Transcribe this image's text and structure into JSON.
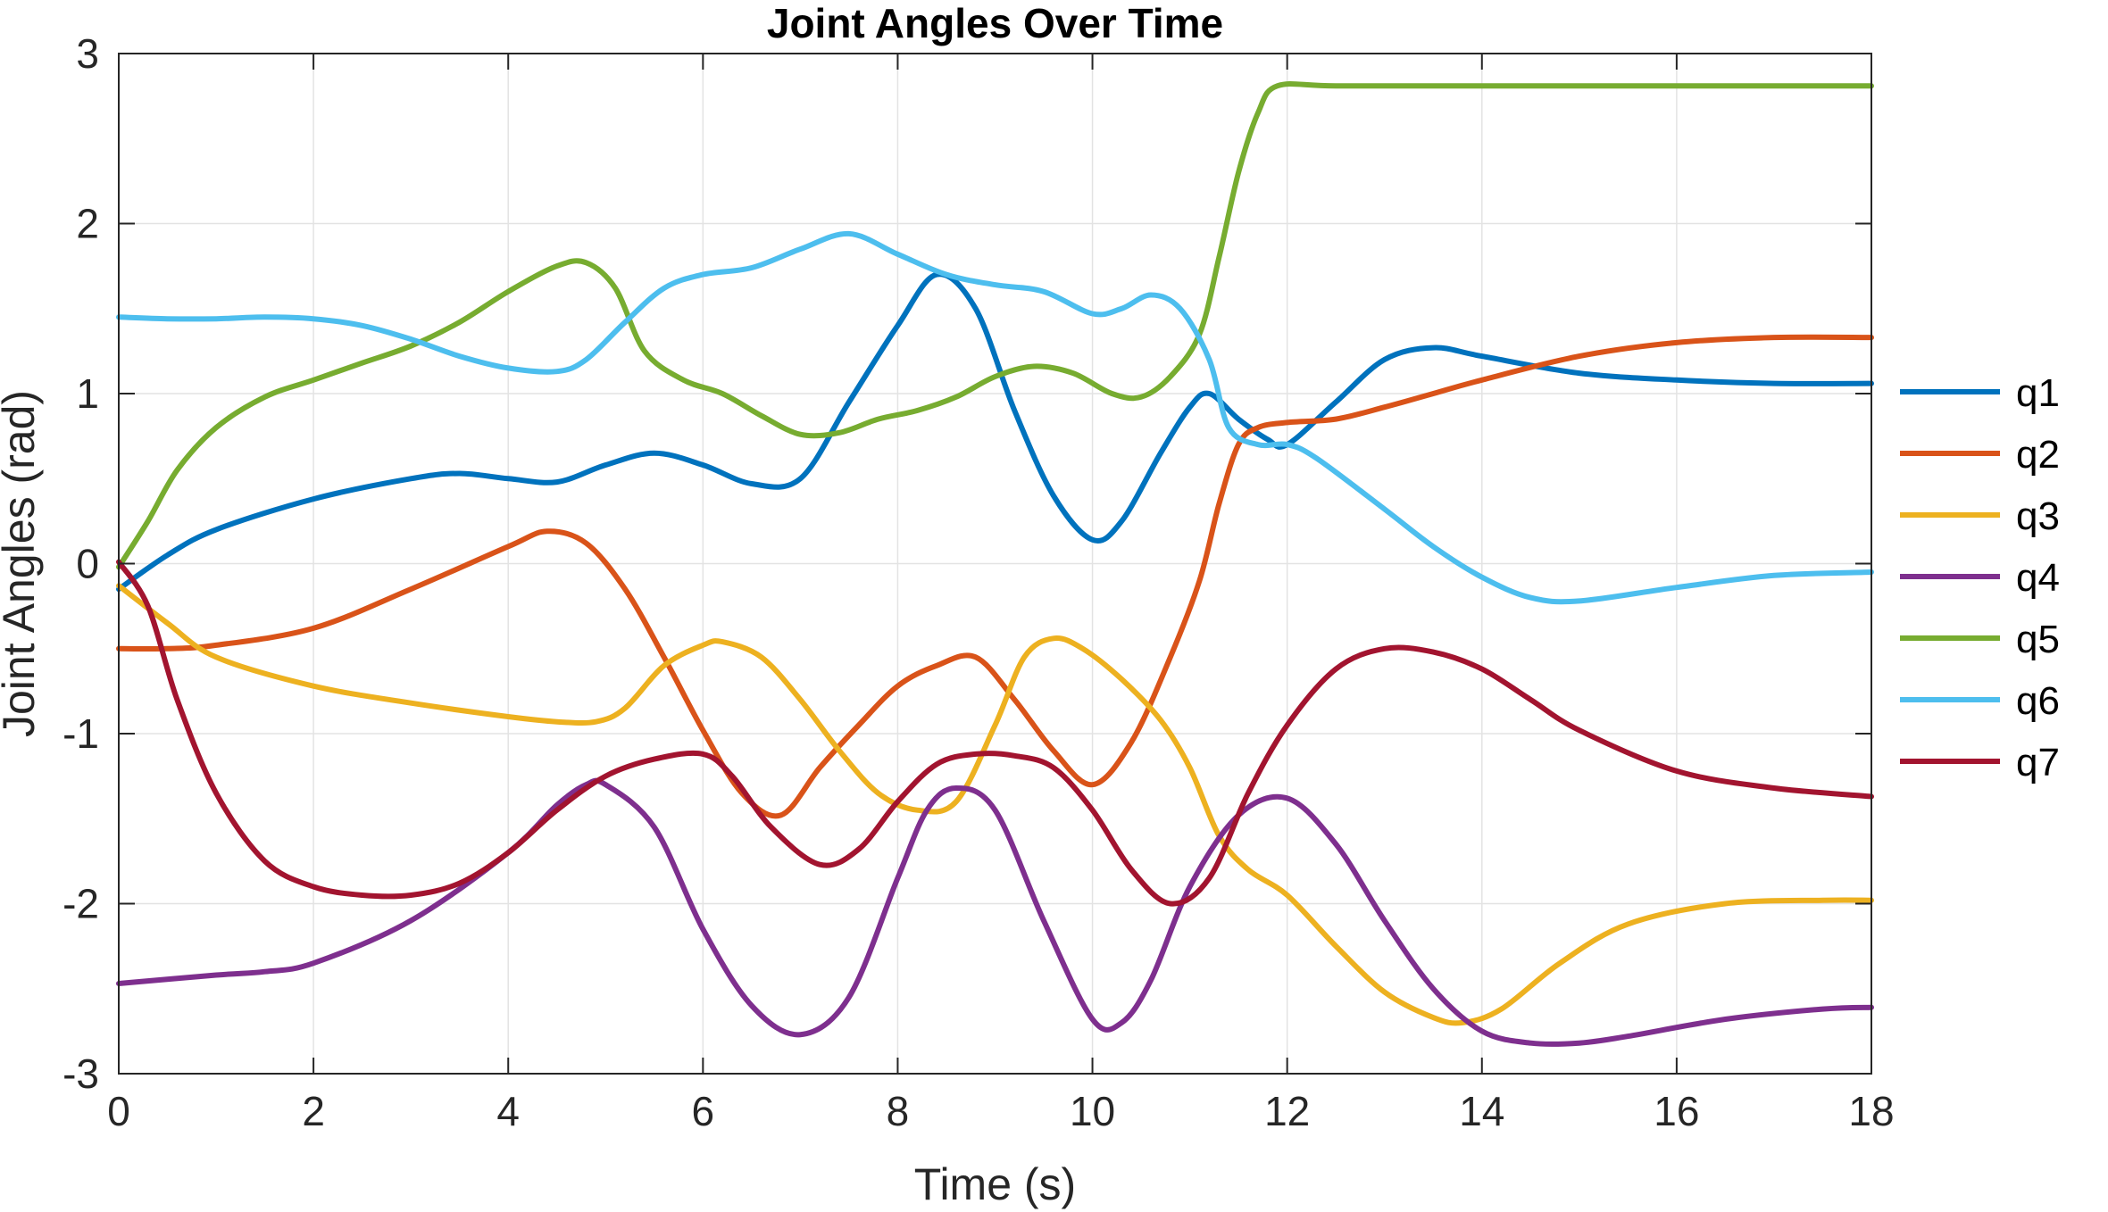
{
  "chart_data": {
    "type": "line",
    "title": "Joint Angles Over Time",
    "xlabel": "Time (s)",
    "ylabel": "Joint Angles (rad)",
    "xlim": [
      0,
      18
    ],
    "ylim": [
      -3,
      3
    ],
    "xticks": [
      0,
      2,
      4,
      6,
      8,
      10,
      12,
      14,
      16,
      18
    ],
    "yticks": [
      -3,
      -2,
      -1,
      0,
      1,
      2,
      3
    ],
    "grid": true,
    "legend_position": "right",
    "series": [
      {
        "name": "q1",
        "color": "#0072BD",
        "x": [
          0,
          0.5,
          1,
          2,
          3,
          3.5,
          4,
          4.5,
          5,
          5.5,
          6,
          6.5,
          7,
          7.5,
          8,
          8.4,
          8.8,
          9.2,
          9.6,
          10,
          10.3,
          10.7,
          11,
          11.2,
          11.5,
          11.8,
          12,
          12.5,
          13,
          13.5,
          14,
          15,
          16,
          17,
          18
        ],
        "y": [
          -0.15,
          0.05,
          0.2,
          0.38,
          0.5,
          0.53,
          0.5,
          0.48,
          0.58,
          0.65,
          0.58,
          0.47,
          0.5,
          0.95,
          1.4,
          1.7,
          1.5,
          0.9,
          0.4,
          0.14,
          0.25,
          0.65,
          0.92,
          1.0,
          0.85,
          0.73,
          0.7,
          0.95,
          1.2,
          1.27,
          1.22,
          1.12,
          1.08,
          1.06,
          1.06
        ]
      },
      {
        "name": "q2",
        "color": "#D95319",
        "x": [
          0,
          0.5,
          1,
          2,
          3,
          4,
          4.4,
          4.8,
          5.2,
          5.6,
          6,
          6.4,
          6.8,
          7.2,
          7.6,
          8,
          8.4,
          8.8,
          9.2,
          9.6,
          10,
          10.4,
          10.8,
          11.1,
          11.3,
          11.5,
          11.7,
          12,
          12.5,
          13,
          13.5,
          14,
          15,
          16,
          17,
          18
        ],
        "y": [
          -0.5,
          -0.5,
          -0.48,
          -0.38,
          -0.15,
          0.1,
          0.19,
          0.12,
          -0.15,
          -0.55,
          -0.98,
          -1.35,
          -1.48,
          -1.2,
          -0.95,
          -0.72,
          -0.6,
          -0.55,
          -0.8,
          -1.1,
          -1.3,
          -1.05,
          -0.55,
          -0.1,
          0.35,
          0.7,
          0.8,
          0.83,
          0.85,
          0.92,
          1.0,
          1.08,
          1.22,
          1.3,
          1.33,
          1.33
        ]
      },
      {
        "name": "q3",
        "color": "#EDB120",
        "x": [
          0,
          0.5,
          1,
          2,
          3,
          4,
          4.5,
          4.9,
          5.2,
          5.6,
          6,
          6.2,
          6.6,
          7,
          7.4,
          7.8,
          8.2,
          8.6,
          9,
          9.3,
          9.6,
          9.9,
          10.3,
          10.7,
          11,
          11.3,
          11.6,
          12,
          12.5,
          13,
          13.5,
          13.8,
          14.2,
          14.8,
          15.5,
          16.5,
          17.5,
          18
        ],
        "y": [
          -0.13,
          -0.35,
          -0.55,
          -0.72,
          -0.82,
          -0.9,
          -0.93,
          -0.93,
          -0.85,
          -0.6,
          -0.48,
          -0.46,
          -0.55,
          -0.8,
          -1.1,
          -1.35,
          -1.45,
          -1.4,
          -0.95,
          -0.55,
          -0.44,
          -0.5,
          -0.68,
          -0.92,
          -1.2,
          -1.6,
          -1.8,
          -1.95,
          -2.25,
          -2.52,
          -2.67,
          -2.7,
          -2.62,
          -2.35,
          -2.12,
          -2.0,
          -1.98,
          -1.98
        ]
      },
      {
        "name": "q4",
        "color": "#7E2F8E",
        "x": [
          0,
          1,
          1.5,
          2,
          3,
          4,
          4.5,
          4.8,
          5,
          5.5,
          6,
          6.5,
          7,
          7.5,
          8,
          8.3,
          8.6,
          9,
          9.5,
          10,
          10.3,
          10.6,
          11,
          11.5,
          12,
          12.5,
          13,
          13.5,
          14,
          14.5,
          15,
          15.5,
          16.5,
          17.5,
          18
        ],
        "y": [
          -2.47,
          -2.42,
          -2.4,
          -2.35,
          -2.1,
          -1.7,
          -1.42,
          -1.3,
          -1.3,
          -1.55,
          -2.15,
          -2.6,
          -2.77,
          -2.55,
          -1.85,
          -1.45,
          -1.32,
          -1.45,
          -2.1,
          -2.68,
          -2.7,
          -2.45,
          -1.9,
          -1.48,
          -1.38,
          -1.65,
          -2.1,
          -2.5,
          -2.75,
          -2.82,
          -2.82,
          -2.78,
          -2.68,
          -2.62,
          -2.61
        ]
      },
      {
        "name": "q5",
        "color": "#77AC30",
        "x": [
          0,
          0.3,
          0.6,
          1,
          1.5,
          2,
          2.5,
          3,
          3.5,
          4,
          4.5,
          4.8,
          5.1,
          5.4,
          5.8,
          6.2,
          6.6,
          7,
          7.4,
          7.8,
          8.2,
          8.6,
          9,
          9.4,
          9.8,
          10.2,
          10.5,
          10.8,
          11.1,
          11.3,
          11.5,
          11.7,
          11.9,
          12.5,
          14,
          16,
          18
        ],
        "y": [
          -0.02,
          0.25,
          0.55,
          0.8,
          0.98,
          1.08,
          1.18,
          1.28,
          1.42,
          1.6,
          1.75,
          1.77,
          1.62,
          1.25,
          1.08,
          1.0,
          0.87,
          0.76,
          0.77,
          0.85,
          0.9,
          0.98,
          1.1,
          1.16,
          1.12,
          1.0,
          0.98,
          1.1,
          1.35,
          1.8,
          2.3,
          2.65,
          2.81,
          2.81,
          2.81,
          2.81,
          2.81
        ]
      },
      {
        "name": "q6",
        "color": "#4DBEEE",
        "x": [
          0,
          0.5,
          1,
          1.5,
          2,
          2.5,
          3,
          3.5,
          4,
          4.5,
          4.8,
          5.2,
          5.6,
          6,
          6.5,
          7,
          7.5,
          8,
          8.5,
          9,
          9.5,
          10,
          10.3,
          10.6,
          10.9,
          11.2,
          11.4,
          11.7,
          12,
          12.3,
          13,
          13.5,
          14,
          14.5,
          15,
          16,
          17,
          18
        ],
        "y": [
          1.45,
          1.44,
          1.44,
          1.45,
          1.44,
          1.4,
          1.32,
          1.22,
          1.15,
          1.13,
          1.2,
          1.42,
          1.62,
          1.7,
          1.74,
          1.85,
          1.94,
          1.82,
          1.7,
          1.64,
          1.6,
          1.47,
          1.5,
          1.58,
          1.5,
          1.2,
          0.8,
          0.7,
          0.7,
          0.62,
          0.32,
          0.1,
          -0.08,
          -0.2,
          -0.22,
          -0.14,
          -0.07,
          -0.05
        ]
      },
      {
        "name": "q7",
        "color": "#A2142F",
        "x": [
          0,
          0.3,
          0.6,
          1,
          1.5,
          2,
          2.5,
          3,
          3.5,
          4,
          4.5,
          5,
          5.5,
          6,
          6.3,
          6.7,
          7.2,
          7.6,
          8,
          8.4,
          8.8,
          9.2,
          9.6,
          10,
          10.4,
          10.8,
          11.2,
          11.6,
          12,
          12.5,
          13,
          13.5,
          14,
          14.5,
          15,
          16,
          17,
          18
        ],
        "y": [
          0.01,
          -0.25,
          -0.8,
          -1.35,
          -1.75,
          -1.9,
          -1.95,
          -1.95,
          -1.88,
          -1.7,
          -1.45,
          -1.25,
          -1.15,
          -1.12,
          -1.25,
          -1.55,
          -1.77,
          -1.68,
          -1.4,
          -1.18,
          -1.12,
          -1.13,
          -1.2,
          -1.45,
          -1.8,
          -2.0,
          -1.85,
          -1.35,
          -0.95,
          -0.62,
          -0.5,
          -0.52,
          -0.62,
          -0.8,
          -0.98,
          -1.22,
          -1.32,
          -1.37
        ]
      }
    ]
  }
}
